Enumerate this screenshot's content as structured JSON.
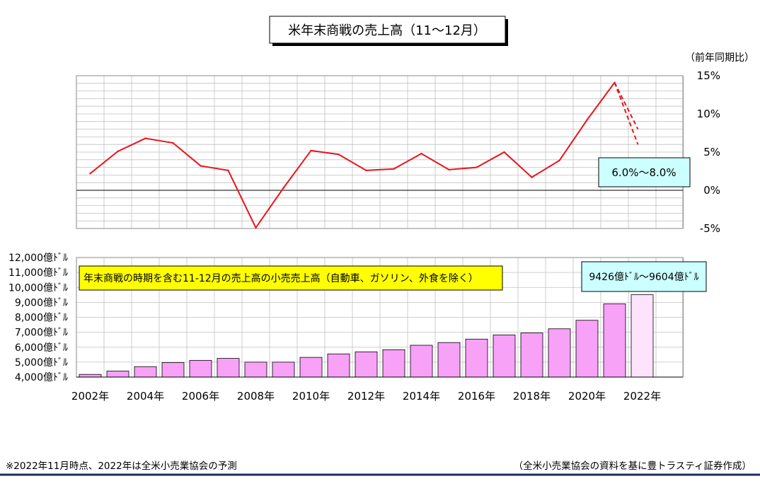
{
  "page": {
    "title": "米年末商戦の売上高（11～12月）",
    "footnote_left": "※2022年11月時点、2022年は全米小売業協会の予測",
    "footnote_right": "（全米小売業協会の資料を基に豊トラスティ証券作成）"
  },
  "colors": {
    "line": "#e8141c",
    "bar": "#f7a1f7",
    "bar_forecast": "#fde3fb",
    "bar_border": "#000000",
    "grid": "#c0c0c0",
    "callout_yellow": "#ffff00",
    "callout_cyan": "#ccffff",
    "footer_rule": "#1f2a5c"
  },
  "chart_data": [
    {
      "type": "line",
      "unit_label": "（前年同期比）",
      "x": [
        2002,
        2003,
        2004,
        2005,
        2006,
        2007,
        2008,
        2009,
        2010,
        2011,
        2012,
        2013,
        2014,
        2015,
        2016,
        2017,
        2018,
        2019,
        2020,
        2021
      ],
      "series": [
        {
          "values": [
            2.2,
            5.1,
            6.8,
            6.2,
            3.2,
            2.6,
            -4.9,
            0.3,
            5.2,
            4.7,
            2.6,
            2.8,
            4.8,
            2.7,
            3.0,
            5.0,
            1.7,
            3.9,
            9.2,
            14.1
          ]
        }
      ],
      "forecast": {
        "from_x": 2021,
        "to_x": 2022,
        "from_value": 14.1,
        "values": [
          6.0,
          8.0
        ]
      },
      "y_ticks": [
        "15%",
        "10%",
        "5%",
        "0%",
        "-5%"
      ],
      "y_tick_values": [
        15,
        10,
        5,
        0,
        -5
      ],
      "ylim": [
        -5,
        15
      ],
      "callout": "6.0%～8.0%"
    },
    {
      "type": "bar",
      "categories": [
        2002,
        2003,
        2004,
        2005,
        2006,
        2007,
        2008,
        2009,
        2010,
        2011,
        2012,
        2013,
        2014,
        2015,
        2016,
        2017,
        2018,
        2019,
        2020,
        2021,
        2022
      ],
      "values": [
        4180,
        4400,
        4700,
        4970,
        5120,
        5250,
        5000,
        5000,
        5320,
        5550,
        5690,
        5830,
        6130,
        6310,
        6540,
        6820,
        6950,
        7230,
        7800,
        8900,
        9515
      ],
      "forecast_index": 20,
      "y_ticks": [
        "12,000億ﾄﾞﾙ",
        "11,000億ﾄﾞﾙ",
        "10,000億ﾄﾞﾙ",
        "9,000億ﾄﾞﾙ",
        "8,000億ﾄﾞﾙ",
        "7,000億ﾄﾞﾙ",
        "6,000億ﾄﾞﾙ",
        "5,000億ﾄﾞﾙ",
        "4,000億ﾄﾞﾙ"
      ],
      "y_tick_values": [
        12000,
        11000,
        10000,
        9000,
        8000,
        7000,
        6000,
        5000,
        4000
      ],
      "ylim": [
        4000,
        12000
      ],
      "x_ticks": [
        "2002年",
        "2004年",
        "2006年",
        "2008年",
        "2010年",
        "2012年",
        "2014年",
        "2016年",
        "2018年",
        "2020年",
        "2022年"
      ],
      "x_tick_values": [
        2002,
        2004,
        2006,
        2008,
        2010,
        2012,
        2014,
        2016,
        2018,
        2020,
        2022
      ],
      "callout_yellow": "年末商戦の時期を含む11-12月の売上高の小売売上高（自動車、ガソリン、外食を除く）",
      "callout_cyan": "9426億ﾄﾞﾙ～9604億ﾄﾞﾙ"
    }
  ]
}
